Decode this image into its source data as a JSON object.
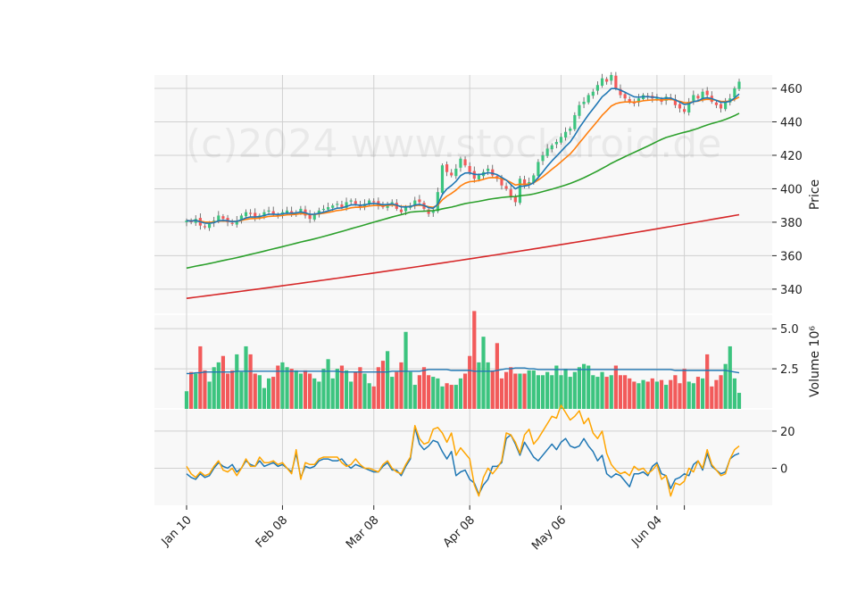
{
  "chart_data": {
    "type": "candlestick",
    "watermark": "(c)2024 www.stockdroid.de",
    "x_ticks": [
      "Jan 10",
      "Feb 08",
      "Mar 08",
      "Apr 08",
      "May 06",
      "Jun 04"
    ],
    "price_panel": {
      "ylabel": "Price",
      "ylim": [
        325,
        468
      ],
      "yticks": [
        340,
        360,
        380,
        400,
        420,
        440,
        460
      ],
      "close": [
        381,
        380,
        382,
        378,
        377,
        379,
        381,
        384,
        382,
        380,
        379,
        381,
        384,
        386,
        385,
        383,
        384,
        386,
        387,
        385,
        384,
        386,
        387,
        385,
        386,
        388,
        384,
        382,
        385,
        387,
        388,
        389,
        390,
        391,
        389,
        392,
        393,
        391,
        389,
        391,
        393,
        392,
        390,
        389,
        391,
        392,
        388,
        386,
        389,
        390,
        393,
        392,
        388,
        385,
        387,
        398,
        414,
        410,
        408,
        412,
        418,
        414,
        410,
        406,
        408,
        410,
        412,
        408,
        406,
        402,
        400,
        395,
        392,
        406,
        402,
        404,
        408,
        416,
        420,
        424,
        426,
        428,
        431,
        434,
        436,
        444,
        450,
        452,
        456,
        458,
        462,
        466,
        464,
        468,
        460,
        456,
        454,
        452,
        451,
        454,
        456,
        455,
        454,
        454,
        452,
        455,
        454,
        450,
        448,
        446,
        452,
        456,
        454,
        458,
        456,
        452,
        450,
        448,
        452,
        454,
        460,
        464
      ],
      "volume_ma": [
        2.2,
        2.2,
        2.25,
        2.25,
        2.3,
        2.3,
        2.3,
        2.3,
        2.3,
        2.3,
        2.3,
        2.35,
        2.35,
        2.35,
        2.35,
        2.35,
        2.35,
        2.35,
        2.35,
        2.35,
        2.35,
        2.35,
        2.35,
        2.35,
        2.35,
        2.35,
        2.35,
        2.35,
        2.35,
        2.35,
        2.35,
        2.35,
        2.35,
        2.35,
        2.3,
        2.3,
        2.3,
        2.3,
        2.3,
        2.3,
        2.3,
        2.3,
        2.3,
        2.3,
        2.3,
        2.35,
        2.35,
        2.35,
        2.35,
        2.35,
        2.35,
        2.35,
        2.4,
        2.45,
        2.45,
        2.45,
        2.45,
        2.45,
        2.4,
        2.4,
        2.4,
        2.4,
        2.4,
        2.35,
        2.35,
        2.35,
        2.35,
        2.35,
        2.4,
        2.45,
        2.5,
        2.5,
        2.55,
        2.55,
        2.55,
        2.5,
        2.5,
        2.45,
        2.45,
        2.45,
        2.45,
        2.45,
        2.45,
        2.45,
        2.45,
        2.45,
        2.45,
        2.45,
        2.45,
        2.45,
        2.45,
        2.45,
        2.45,
        2.45,
        2.45,
        2.45,
        2.45,
        2.45,
        2.45,
        2.45,
        2.45,
        2.45,
        2.45,
        2.45,
        2.45,
        2.45,
        2.45,
        2.4,
        2.4,
        2.4,
        2.4,
        2.4,
        2.4,
        2.4,
        2.4,
        2.4,
        2.4,
        2.4,
        2.4,
        2.35,
        2.3,
        2.25
      ]
    },
    "volume_panel": {
      "ylabel": "Volume  10⁶",
      "yticks": [
        2.5,
        5.0
      ],
      "ylim": [
        0,
        5.9
      ],
      "values": [
        1.1,
        2.3,
        2.2,
        3.9,
        2.4,
        1.7,
        2.6,
        2.9,
        3.3,
        2.2,
        2.4,
        3.4,
        2.3,
        3.9,
        3.4,
        2.2,
        2.1,
        1.3,
        1.9,
        2.0,
        2.7,
        2.9,
        2.6,
        2.5,
        2.4,
        2.2,
        2.4,
        2.2,
        1.9,
        1.7,
        2.5,
        3.1,
        1.9,
        2.5,
        2.7,
        2.4,
        1.7,
        2.3,
        2.6,
        2.2,
        1.6,
        1.4,
        2.6,
        3.0,
        3.6,
        2.0,
        2.3,
        2.9,
        4.8,
        2.3,
        1.5,
        2.1,
        2.6,
        2.1,
        2.0,
        1.9,
        1.4,
        1.6,
        1.5,
        1.5,
        1.9,
        2.2,
        3.3,
        6.1,
        2.9,
        4.5,
        2.9,
        2.4,
        4.1,
        1.9,
        2.3,
        2.6,
        2.2,
        2.2,
        2.2,
        2.4,
        2.4,
        2.1,
        2.1,
        2.3,
        2.1,
        2.7,
        2.1,
        2.5,
        2.0,
        2.3,
        2.6,
        2.8,
        2.7,
        2.1,
        2.0,
        2.3,
        2.0,
        2.1,
        2.7,
        2.1,
        2.1,
        1.9,
        1.7,
        1.6,
        1.8,
        1.7,
        1.9,
        1.7,
        1.8,
        1.5,
        1.8,
        2.1,
        1.6,
        2.5,
        1.7,
        1.6,
        2.0,
        1.9,
        3.4,
        1.4,
        1.8,
        2.1,
        2.8,
        3.9,
        1.9,
        1.0
      ]
    },
    "indicator_panel": {
      "yticks": [
        0,
        20
      ],
      "ylim": [
        -20,
        32
      ],
      "line_blue": [
        -3,
        -5,
        -6,
        -3,
        -5,
        -4,
        0,
        3,
        1,
        0,
        2,
        -2,
        0,
        4,
        2,
        1,
        4,
        1,
        2,
        3,
        1,
        2,
        0,
        -2,
        8,
        -5,
        1,
        0,
        1,
        4,
        5,
        5,
        4,
        4,
        5,
        2,
        0,
        2,
        1,
        0,
        -1,
        -2,
        -2,
        1,
        3,
        -1,
        -1,
        -4,
        1,
        5,
        22,
        13,
        10,
        12,
        15,
        14,
        9,
        5,
        9,
        -4,
        -2,
        -1,
        -6,
        -8,
        -14,
        -9,
        -6,
        1,
        1,
        3,
        16,
        18,
        13,
        7,
        14,
        10,
        6,
        4,
        7,
        10,
        13,
        10,
        14,
        16,
        12,
        11,
        12,
        16,
        12,
        9,
        4,
        7,
        -3,
        -5,
        -3,
        -4,
        -7,
        -10,
        -3,
        -3,
        -2,
        -4,
        1,
        3,
        -3,
        -4,
        -11,
        -6,
        -5,
        -3,
        -4,
        2,
        4,
        -1,
        8,
        1,
        -1,
        -3,
        -2,
        5,
        7,
        8
      ],
      "line_orange": [
        1,
        -3,
        -5,
        -2,
        -4,
        -3,
        1,
        4,
        -1,
        -2,
        0,
        -4,
        0,
        5,
        1,
        1,
        6,
        3,
        3,
        4,
        2,
        3,
        0,
        -3,
        10,
        -6,
        3,
        2,
        2,
        5,
        6,
        6,
        6,
        6,
        3,
        1,
        2,
        5,
        2,
        0,
        0,
        -1,
        -2,
        2,
        4,
        0,
        -2,
        -3,
        2,
        6,
        23,
        16,
        13,
        14,
        21,
        22,
        19,
        14,
        19,
        7,
        11,
        8,
        5,
        -9,
        -15,
        -5,
        0,
        -3,
        0,
        4,
        19,
        18,
        14,
        8,
        18,
        21,
        13,
        16,
        20,
        24,
        28,
        27,
        34,
        30,
        26,
        28,
        31,
        24,
        27,
        19,
        16,
        20,
        8,
        2,
        -1,
        -3,
        -2,
        -4,
        1,
        -1,
        0,
        -3,
        -1,
        2,
        -6,
        -4,
        -15,
        -8,
        -9,
        -7,
        0,
        -2,
        4,
        0,
        10,
        2,
        -1,
        -4,
        -3,
        5,
        10,
        12
      ]
    }
  }
}
